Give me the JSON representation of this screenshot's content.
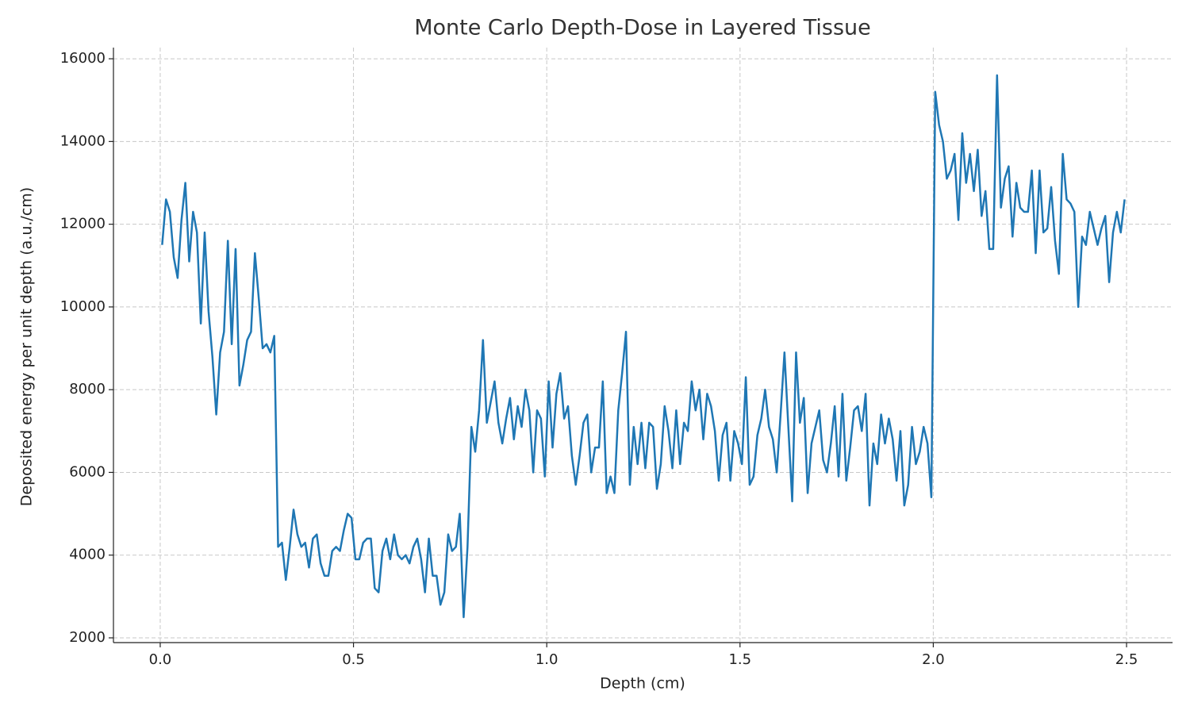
{
  "chart_data": {
    "type": "line",
    "title": "Monte Carlo Depth-Dose in Layered Tissue",
    "xlabel": "Depth (cm)",
    "ylabel": "Deposited energy per unit depth (a.u./cm)",
    "color": "#1f77b4",
    "grid": true,
    "xlim": [
      -0.121,
      2.619
    ],
    "ylim": [
      1885,
      16270
    ],
    "xticks": [
      {
        "value": 0,
        "label": "0.0"
      },
      0.5,
      {
        "value": 1,
        "label": "1.0"
      },
      1.5,
      {
        "value": 2,
        "label": "2.0"
      },
      2.5
    ],
    "yticks": [
      2000,
      4000,
      6000,
      8000,
      10000,
      12000,
      14000,
      16000
    ],
    "x": [
      0.005,
      0.015,
      0.025,
      0.035,
      0.045,
      0.055,
      0.065,
      0.075,
      0.085,
      0.095,
      0.105,
      0.115,
      0.125,
      0.135,
      0.145,
      0.155,
      0.165,
      0.175,
      0.185,
      0.195,
      0.205,
      0.215,
      0.225,
      0.235,
      0.245,
      0.255,
      0.265,
      0.275,
      0.285,
      0.295,
      0.305,
      0.315,
      0.325,
      0.335,
      0.345,
      0.355,
      0.365,
      0.375,
      0.385,
      0.395,
      0.405,
      0.415,
      0.425,
      0.435,
      0.445,
      0.455,
      0.465,
      0.475,
      0.485,
      0.495,
      0.505,
      0.515,
      0.525,
      0.535,
      0.545,
      0.555,
      0.565,
      0.575,
      0.585,
      0.595,
      0.605,
      0.615,
      0.625,
      0.635,
      0.645,
      0.655,
      0.665,
      0.675,
      0.685,
      0.695,
      0.705,
      0.715,
      0.725,
      0.735,
      0.745,
      0.755,
      0.765,
      0.775,
      0.785,
      0.795,
      0.805,
      0.815,
      0.825,
      0.835,
      0.845,
      0.855,
      0.865,
      0.875,
      0.885,
      0.895,
      0.905,
      0.915,
      0.925,
      0.935,
      0.945,
      0.955,
      0.965,
      0.975,
      0.985,
      0.995,
      1.005,
      1.015,
      1.025,
      1.035,
      1.045,
      1.055,
      1.065,
      1.075,
      1.085,
      1.095,
      1.105,
      1.115,
      1.125,
      1.135,
      1.145,
      1.155,
      1.165,
      1.175,
      1.185,
      1.195,
      1.205,
      1.215,
      1.225,
      1.235,
      1.245,
      1.255,
      1.265,
      1.275,
      1.285,
      1.295,
      1.305,
      1.315,
      1.325,
      1.335,
      1.345,
      1.355,
      1.365,
      1.375,
      1.385,
      1.395,
      1.405,
      1.415,
      1.425,
      1.435,
      1.445,
      1.455,
      1.465,
      1.475,
      1.485,
      1.495,
      1.505,
      1.515,
      1.525,
      1.535,
      1.545,
      1.555,
      1.565,
      1.575,
      1.585,
      1.595,
      1.605,
      1.615,
      1.625,
      1.635,
      1.645,
      1.655,
      1.665,
      1.675,
      1.685,
      1.695,
      1.705,
      1.715,
      1.725,
      1.735,
      1.745,
      1.755,
      1.765,
      1.775,
      1.785,
      1.795,
      1.805,
      1.815,
      1.825,
      1.835,
      1.845,
      1.855,
      1.865,
      1.875,
      1.885,
      1.895,
      1.905,
      1.915,
      1.925,
      1.935,
      1.945,
      1.955,
      1.965,
      1.975,
      1.985,
      1.995,
      2.005,
      2.015,
      2.025,
      2.035,
      2.045,
      2.055,
      2.065,
      2.075,
      2.085,
      2.095,
      2.105,
      2.115,
      2.125,
      2.135,
      2.145,
      2.155,
      2.165,
      2.175,
      2.185,
      2.195,
      2.205,
      2.215,
      2.225,
      2.235,
      2.245,
      2.255,
      2.265,
      2.275,
      2.285,
      2.295,
      2.305,
      2.315,
      2.325,
      2.335,
      2.345,
      2.355,
      2.365,
      2.375,
      2.385,
      2.395,
      2.405,
      2.415,
      2.425,
      2.435,
      2.445,
      2.455,
      2.465,
      2.475,
      2.485,
      2.495
    ],
    "values": [
      11500,
      12600,
      12300,
      11200,
      10700,
      12100,
      13000,
      11100,
      12300,
      11800,
      9600,
      11800,
      9900,
      8800,
      7400,
      8900,
      9400,
      11600,
      9100,
      11400,
      8100,
      8600,
      9200,
      9400,
      11300,
      10200,
      9000,
      9100,
      8900,
      9300,
      4200,
      4300,
      3400,
      4200,
      5100,
      4500,
      4200,
      4300,
      3700,
      4400,
      4500,
      3800,
      3500,
      3500,
      4100,
      4200,
      4100,
      4600,
      5000,
      4900,
      3900,
      3900,
      4300,
      4400,
      4400,
      3200,
      3100,
      4100,
      4400,
      3900,
      4500,
      4000,
      3900,
      4000,
      3800,
      4200,
      4400,
      3900,
      3100,
      4400,
      3500,
      3500,
      2800,
      3100,
      4500,
      4100,
      4200,
      5000,
      2500,
      4200,
      7100,
      6500,
      7500,
      9200,
      7200,
      7700,
      8200,
      7200,
      6700,
      7300,
      7800,
      6800,
      7600,
      7100,
      8000,
      7500,
      6000,
      7500,
      7300,
      5900,
      8200,
      6600,
      7900,
      8400,
      7300,
      7600,
      6400,
      5700,
      6400,
      7200,
      7400,
      6000,
      6600,
      6600,
      8200,
      5500,
      5900,
      5500,
      7500,
      8400,
      9400,
      5700,
      7100,
      6200,
      7200,
      6100,
      7200,
      7100,
      5600,
      6200,
      7600,
      7000,
      6100,
      7500,
      6200,
      7200,
      7000,
      8200,
      7500,
      8000,
      6800,
      7900,
      7600,
      7000,
      5800,
      6900,
      7200,
      5800,
      7000,
      6700,
      6200,
      8300,
      5700,
      5900,
      6900,
      7300,
      8000,
      7100,
      6800,
      6000,
      7400,
      8900,
      7100,
      5300,
      8900,
      7200,
      7800,
      5500,
      6700,
      7100,
      7500,
      6300,
      6000,
      6700,
      7600,
      5900,
      7900,
      5800,
      6600,
      7500,
      7600,
      7000,
      7900,
      5200,
      6700,
      6200,
      7400,
      6700,
      7300,
      6800,
      5800,
      7000,
      5200,
      5700,
      7100,
      6200,
      6500,
      7100,
      6700,
      5400,
      15200,
      14400,
      14000,
      13100,
      13300,
      13700,
      12100,
      14200,
      13000,
      13700,
      12800,
      13800,
      12200,
      12800,
      11400,
      11400,
      15600,
      12400,
      13100,
      13400,
      11700,
      13000,
      12400,
      12300,
      12300,
      13300,
      11300,
      13300,
      11800,
      11900,
      12900,
      11600,
      10800,
      13700,
      12600,
      12500,
      12300,
      10000,
      11700,
      11500,
      12300,
      11900,
      11500,
      11900,
      12200,
      10600,
      11800,
      12300,
      11800,
      12600
    ]
  }
}
